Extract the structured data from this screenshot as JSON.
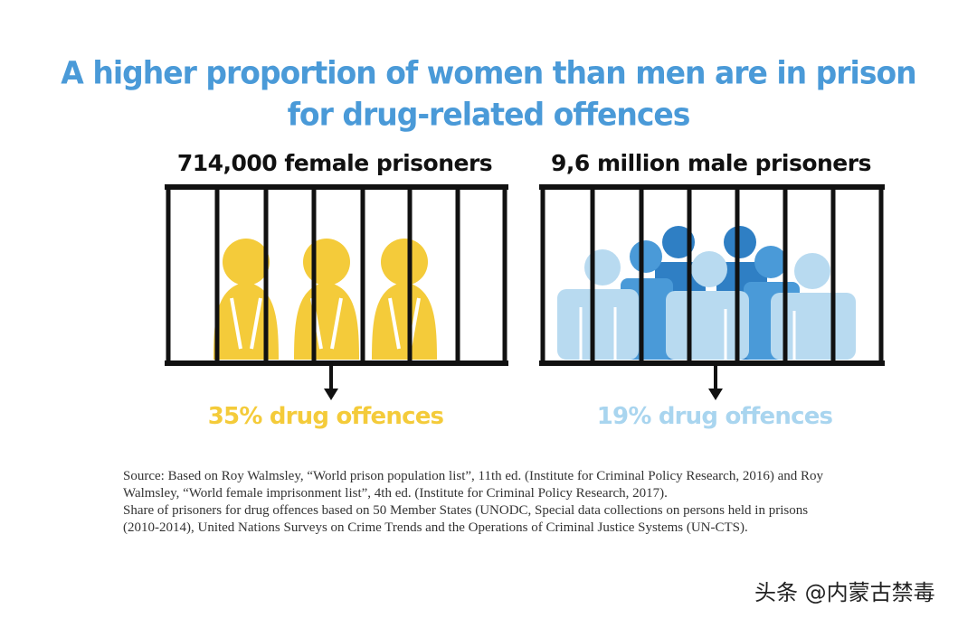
{
  "title": {
    "line1": "A higher proportion of women than men are in prison",
    "line2": "for drug-related offences"
  },
  "female": {
    "label": "714,000 female prisoners",
    "percent_text": "35% drug offences",
    "percent": 35,
    "color": "#f4cb3a"
  },
  "male": {
    "label": "9,6 million male prisoners",
    "percent_text": "19% drug offences",
    "percent": 19,
    "colors": [
      "#b8daf0",
      "#4a9ad8",
      "#2f7fc4"
    ]
  },
  "source": {
    "line1": "Source: Based on Roy Walmsley, “World prison population list”, 11th ed. (Institute for Criminal Policy Research, 2016) and Roy",
    "line2": "Walmsley, “World female imprisonment list”, 4th ed. (Institute for Criminal Policy Research, 2017).",
    "line3": "Share of prisoners for drug offences based on 50 Member States (UNODC, Special data collections on persons held in prisons",
    "line4": "(2010-2014), United Nations Surveys on Crime Trends and the Operations of Criminal Justice Systems (UN-CTS)."
  },
  "watermark": "头条 @内蒙古禁毒"
}
